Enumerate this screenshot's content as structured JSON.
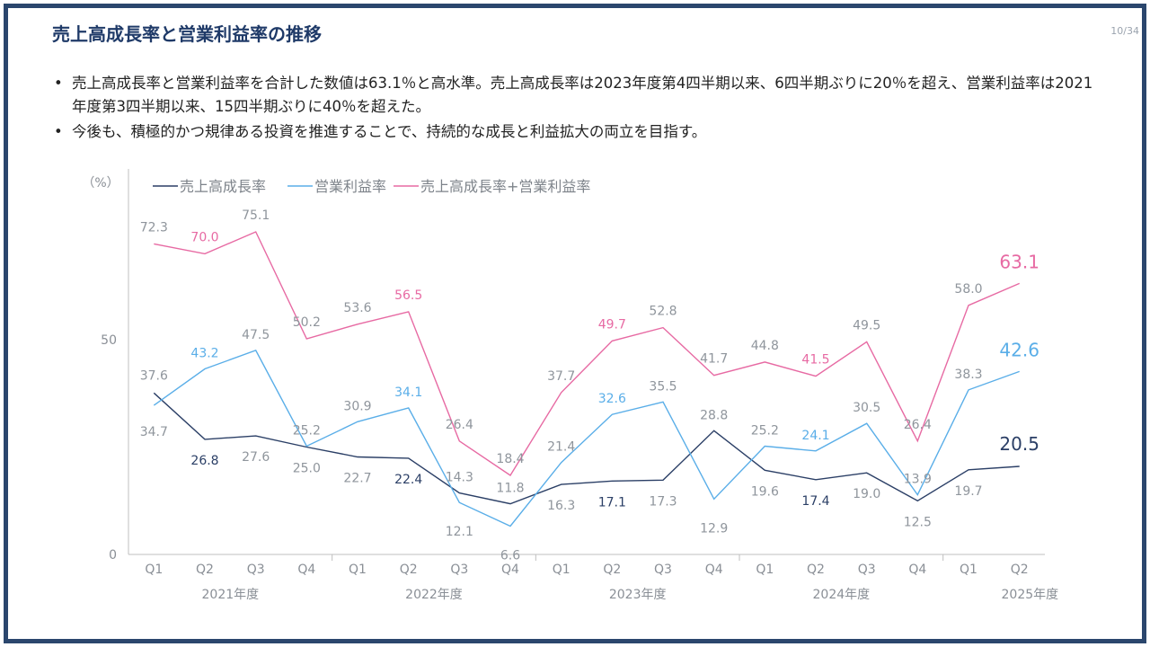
{
  "header": {
    "title": "売上高成長率と営業利益率の推移",
    "page": "10/34"
  },
  "bullets": [
    "売上高成長率と営業利益率を合計した数値は63.1％と高水準。売上高成長率は2023年度第4四半期以来、6四半期ぶりに20％を超え、営業利益率は2021年度第3四半期以来、15四半期ぶりに40％を超えた。",
    "今後も、積極的かつ規律ある投資を推進することで、持続的な成長と利益拡大の両立を目指す。"
  ],
  "bullet_symbol": "•",
  "chart_data": {
    "type": "line",
    "unit_label": "（%）",
    "categories": [
      "Q1",
      "Q2",
      "Q3",
      "Q4",
      "Q1",
      "Q2",
      "Q3",
      "Q4",
      "Q1",
      "Q2",
      "Q3",
      "Q4",
      "Q1",
      "Q2",
      "Q3",
      "Q4",
      "Q1",
      "Q2"
    ],
    "year_groups": [
      {
        "label": "2021年度",
        "start": 0,
        "end": 3
      },
      {
        "label": "2022年度",
        "start": 4,
        "end": 7
      },
      {
        "label": "2023年度",
        "start": 8,
        "end": 11
      },
      {
        "label": "2024年度",
        "start": 12,
        "end": 15
      },
      {
        "label": "2025年度",
        "start": 16,
        "end": 17
      }
    ],
    "yticks": [
      0,
      50
    ],
    "ylim": [
      0,
      90
    ],
    "series": [
      {
        "name": "売上高成長率",
        "color": "#2b3f66",
        "values": [
          37.6,
          26.8,
          27.6,
          25.0,
          22.7,
          22.4,
          14.3,
          11.8,
          16.3,
          17.1,
          17.3,
          28.8,
          19.6,
          17.4,
          19.0,
          12.5,
          19.7,
          20.5
        ]
      },
      {
        "name": "営業利益率",
        "color": "#5aaee8",
        "values": [
          34.7,
          43.2,
          47.5,
          25.2,
          30.9,
          34.1,
          12.1,
          6.6,
          21.4,
          32.6,
          35.5,
          12.9,
          25.2,
          24.1,
          30.5,
          13.9,
          38.3,
          42.6
        ]
      },
      {
        "name": "売上高成長率+営業利益率",
        "color": "#e76aa3",
        "values": [
          72.3,
          70.0,
          75.1,
          50.2,
          53.6,
          56.5,
          26.4,
          18.4,
          37.7,
          49.7,
          52.8,
          41.7,
          44.8,
          41.5,
          49.5,
          26.4,
          58.0,
          63.1
        ]
      }
    ],
    "legend_position": "top-left",
    "grid": false
  }
}
